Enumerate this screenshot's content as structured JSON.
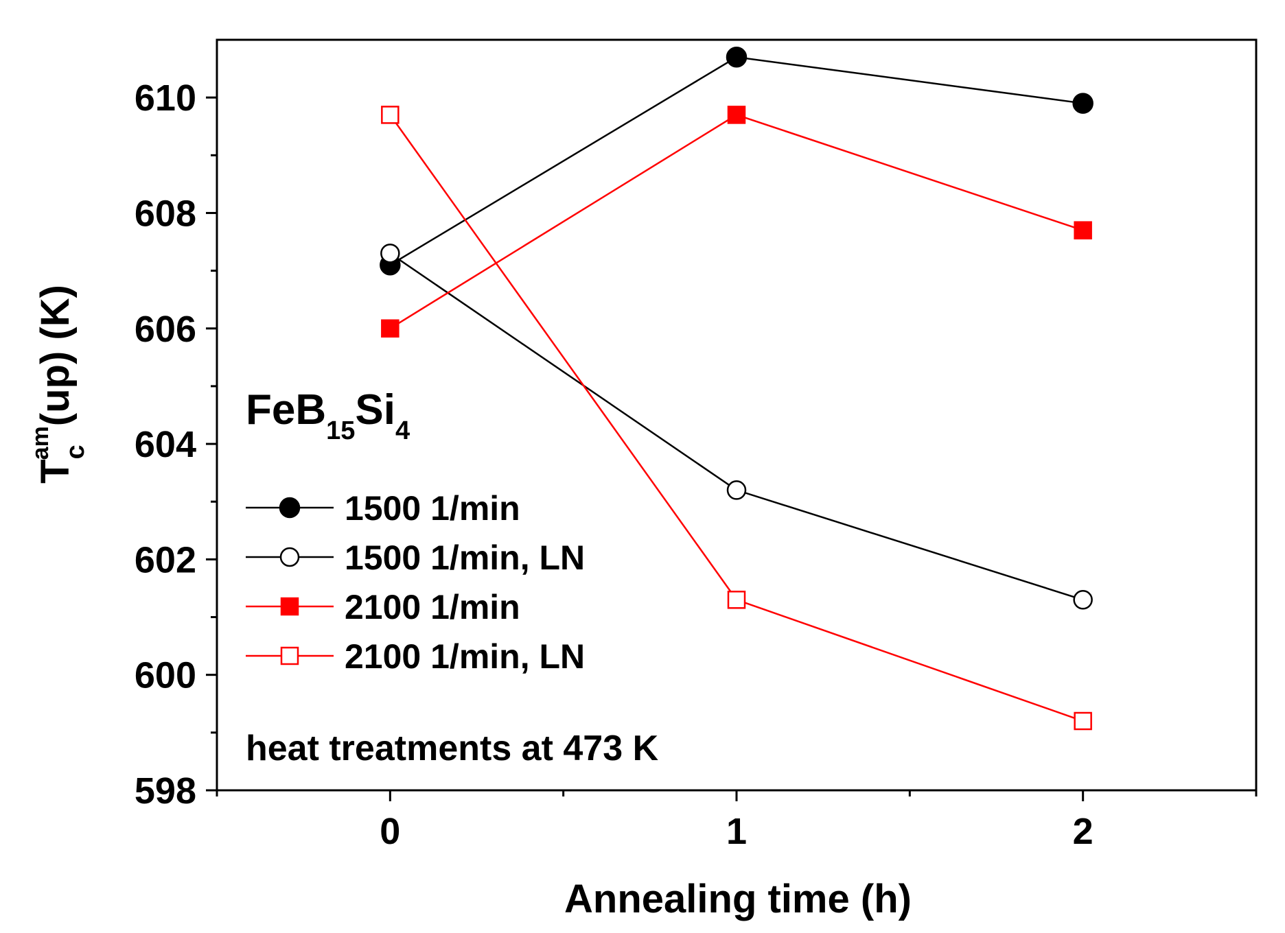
{
  "chart_data": {
    "type": "line",
    "xlabel": "Annealing time (h)",
    "ylabel": {
      "main": "T",
      "sup": "am",
      "sub": "c",
      "rest": "(up) (K)"
    },
    "xlim": [
      -0.5,
      2.5
    ],
    "ylim": [
      598,
      611
    ],
    "x_ticks": [
      0,
      1,
      2
    ],
    "x_tick_labels": [
      "0",
      "1",
      "2"
    ],
    "x_minor_ticks": [
      -0.5,
      0.5,
      1.5,
      2.5
    ],
    "y_ticks": [
      598,
      600,
      602,
      604,
      606,
      608,
      610
    ],
    "y_tick_labels": [
      "598",
      "600",
      "602",
      "604",
      "606",
      "608",
      "610"
    ],
    "y_minor_ticks": [
      599,
      601,
      603,
      605,
      607,
      609
    ],
    "grid": false,
    "legend_position": "left",
    "annotations": {
      "composition": {
        "base": "FeB",
        "sub1": "15",
        "mid": "Si",
        "sub2": "4"
      },
      "note": "heat treatments at 473 K"
    },
    "series": [
      {
        "name": "1500 1/min",
        "color": "#000000",
        "marker": "circle",
        "filled": true,
        "x": [
          0,
          1,
          2
        ],
        "y": [
          607.1,
          610.7,
          609.9
        ]
      },
      {
        "name": "1500 1/min, LN",
        "color": "#000000",
        "marker": "circle",
        "filled": false,
        "x": [
          0,
          1,
          2
        ],
        "y": [
          607.3,
          603.2,
          601.3
        ]
      },
      {
        "name": "2100 1/min",
        "color": "#ff0000",
        "marker": "square",
        "filled": true,
        "x": [
          0,
          1,
          2
        ],
        "y": [
          606.0,
          609.7,
          607.7
        ]
      },
      {
        "name": "2100 1/min, LN",
        "color": "#ff0000",
        "marker": "square",
        "filled": false,
        "x": [
          0,
          1,
          2
        ],
        "y": [
          609.7,
          601.3,
          599.2
        ]
      }
    ]
  }
}
